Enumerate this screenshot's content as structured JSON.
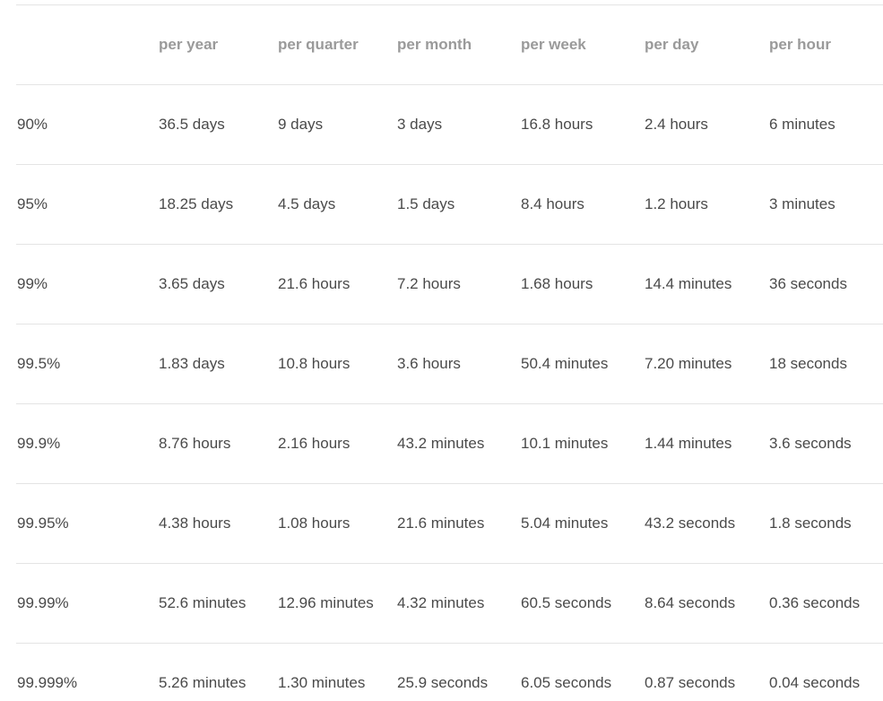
{
  "table": {
    "headers": [
      "",
      "per year",
      "per quarter",
      "per month",
      "per week",
      "per day",
      "per hour"
    ],
    "rows": [
      [
        "90%",
        "36.5 days",
        "9 days",
        "3 days",
        "16.8 hours",
        "2.4 hours",
        "6 minutes"
      ],
      [
        "95%",
        "18.25 days",
        "4.5 days",
        "1.5 days",
        "8.4 hours",
        "1.2 hours",
        "3 minutes"
      ],
      [
        "99%",
        "3.65 days",
        "21.6 hours",
        "7.2 hours",
        "1.68 hours",
        "14.4 minutes",
        "36 seconds"
      ],
      [
        "99.5%",
        "1.83 days",
        "10.8 hours",
        "3.6 hours",
        "50.4 minutes",
        "7.20 minutes",
        "18 seconds"
      ],
      [
        "99.9%",
        "8.76 hours",
        "2.16 hours",
        "43.2 minutes",
        "10.1 minutes",
        "1.44 minutes",
        "3.6 seconds"
      ],
      [
        "99.95%",
        "4.38 hours",
        "1.08 hours",
        "21.6 minutes",
        "5.04 minutes",
        "43.2 seconds",
        "1.8 seconds"
      ],
      [
        "99.99%",
        "52.6 minutes",
        "12.96 minutes",
        "4.32 minutes",
        "60.5 seconds",
        "8.64 seconds",
        "0.36 seconds"
      ],
      [
        "99.999%",
        "5.26 minutes",
        "1.30 minutes",
        "25.9 seconds",
        "6.05 seconds",
        "0.87 seconds",
        "0.04 seconds"
      ]
    ]
  }
}
